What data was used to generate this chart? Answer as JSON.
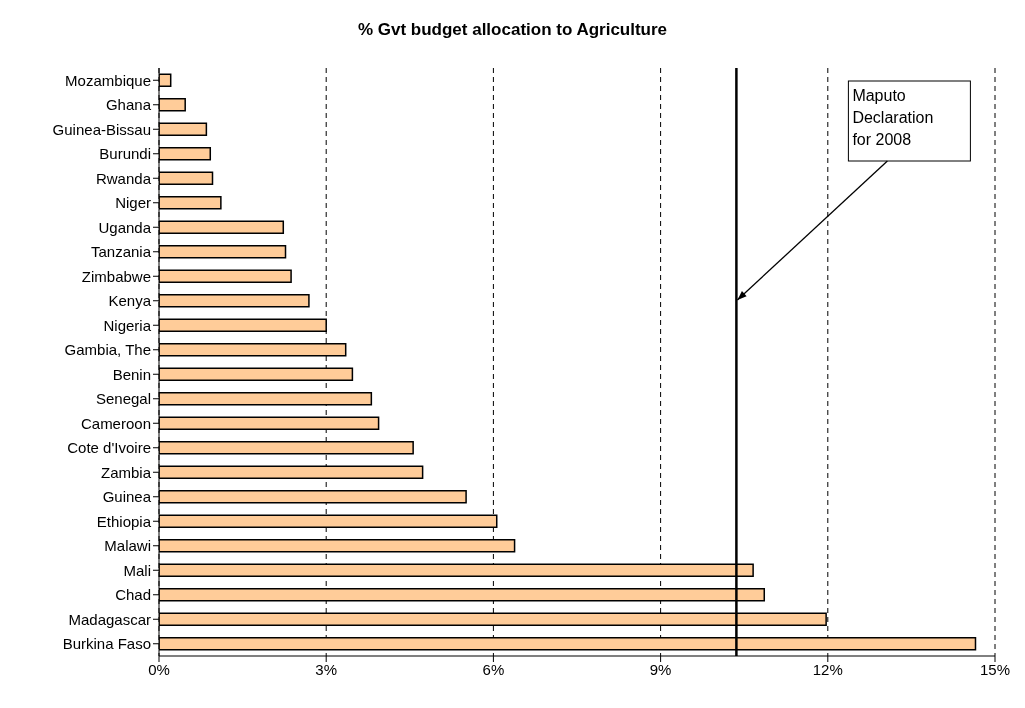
{
  "chart_data": {
    "type": "bar",
    "orientation": "horizontal",
    "title": "% Gvt budget allocation to Agriculture",
    "categories": [
      "Mozambique",
      "Ghana",
      "Guinea-Bissau",
      "Burundi",
      "Rwanda",
      "Niger",
      "Uganda",
      "Tanzania",
      "Zimbabwe",
      "Kenya",
      "Nigeria",
      "Gambia, The",
      "Benin",
      "Senegal",
      "Cameroon",
      "Cote d'Ivoire",
      "Zambia",
      "Guinea",
      "Ethiopia",
      "Malawi",
      "Mali",
      "Chad",
      "Madagascar",
      "Burkina Faso"
    ],
    "values": [
      0.21,
      0.47,
      0.85,
      0.92,
      0.96,
      1.11,
      2.23,
      2.27,
      2.37,
      2.69,
      3.0,
      3.35,
      3.47,
      3.81,
      3.94,
      4.56,
      4.73,
      5.51,
      6.06,
      6.38,
      10.66,
      10.86,
      11.97,
      14.65
    ],
    "color": "#ffcc99",
    "xlim": [
      0,
      15
    ],
    "xticks": [
      {
        "value": 0,
        "label": "0%"
      },
      {
        "value": 3,
        "label": "3%"
      },
      {
        "value": 6,
        "label": "6%"
      },
      {
        "value": 9,
        "label": "9%"
      },
      {
        "value": 12,
        "label": "12%"
      },
      {
        "value": 15,
        "label": "15%"
      }
    ],
    "grid": "x",
    "ref_lines": [
      {
        "axis": "x",
        "value": 10.36,
        "label": "Maputo Declaration for 2008",
        "color": "#000000",
        "line_style": "solid"
      }
    ]
  }
}
